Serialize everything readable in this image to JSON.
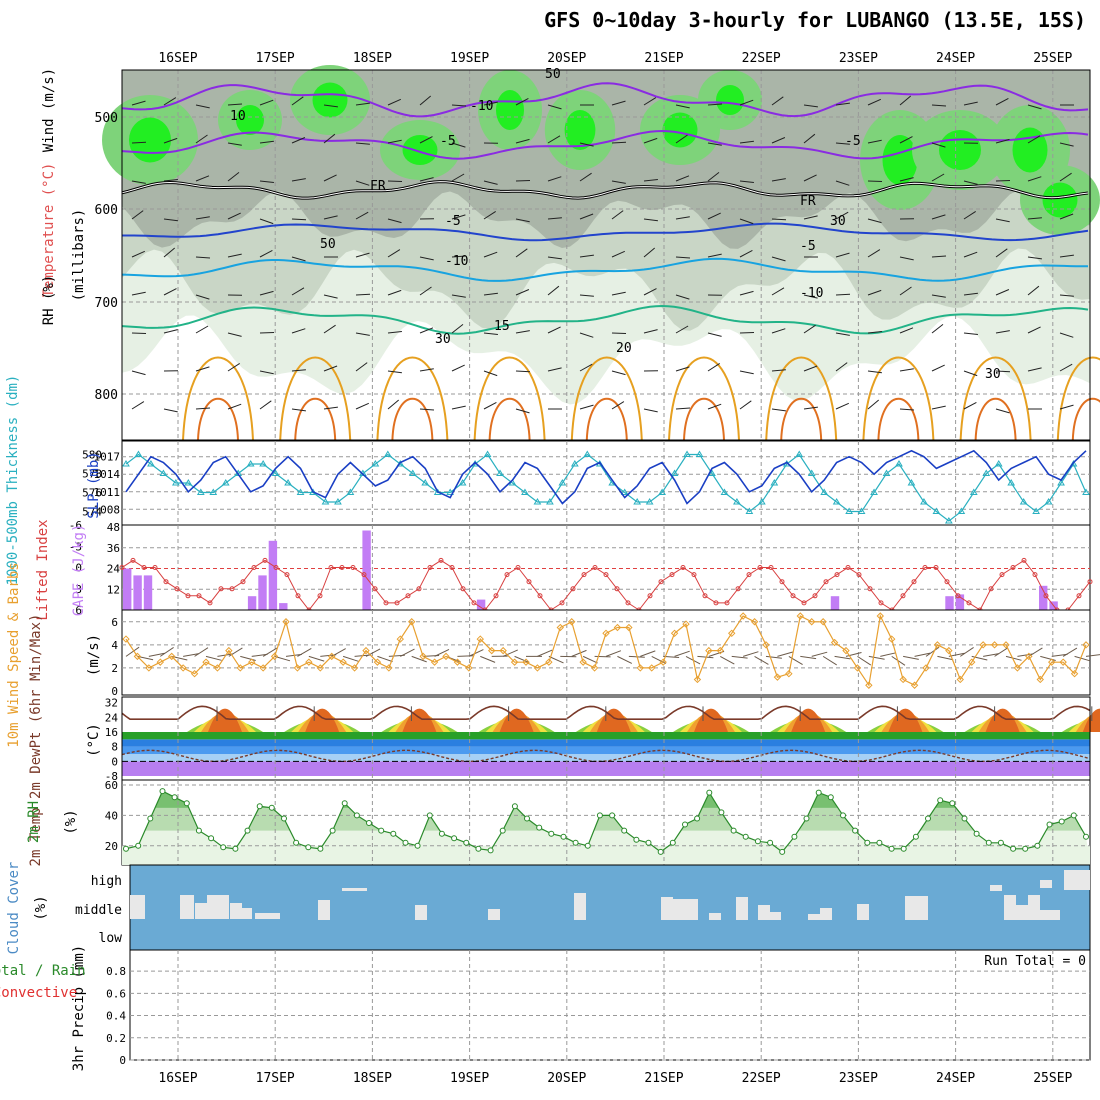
{
  "title": "GFS 0~10day 3-hourly for LUBANGO (13.5E, 15S)",
  "date_labels": [
    "16SEP",
    "17SEP",
    "18SEP",
    "19SEP",
    "20SEP",
    "21SEP",
    "22SEP",
    "23SEP",
    "24SEP",
    "25SEP"
  ],
  "run_total_label": "Run Total = 0",
  "colors": {
    "rh_light": "#e6f0e4",
    "rh_mid": "#c9d6c6",
    "rh_dark": "#aab5a8",
    "rh_green": "#7ed37a",
    "rh_bright": "#22ee22",
    "purple": "#8a2be2",
    "blue": "#2244cc",
    "cyan": "#18a3e0",
    "teal": "#22b388",
    "orange": "#e6a020",
    "dark_orange": "#e07020",
    "cloud_bg": "#6aaad4",
    "precip_axis": "#000"
  },
  "panels": {
    "upper": {
      "y_label_wind": "Wind (m/s)",
      "y_label_temp": "Temperature (°C)",
      "y_label_rh": "RH (%)",
      "y_label_units": "(millibars)",
      "y_ticks": [
        "500",
        "600",
        "700",
        "800"
      ],
      "contour_labels": [
        "-10",
        "-5",
        "-5",
        "FR",
        "FR",
        "-5",
        "-5",
        "-10",
        "-10",
        "10",
        "15",
        "20",
        "50",
        "50",
        "30",
        "30",
        "30"
      ]
    },
    "slp": {
      "y_label_left": "1000-500mb Thickness (dm)",
      "y_label_right": "SLP (mb)",
      "left_ticks": [
        "580",
        "578",
        "576",
        "574"
      ],
      "right_ticks": [
        "1017",
        "1014",
        "1011",
        "1008"
      ]
    },
    "cape": {
      "y_label_left": "Lifted Index",
      "y_label_right": "CAPE (J/kg)",
      "left_ticks": [
        "-6",
        "-3",
        "0",
        "3",
        "6"
      ],
      "right_ticks": [
        "48",
        "36",
        "24",
        "12"
      ]
    },
    "wind": {
      "y_label": "10m Wind Speed & Barbs",
      "y_units": "(m/s)",
      "ticks": [
        "6",
        "4",
        "2",
        "0"
      ]
    },
    "temp": {
      "y_label": "2m Temp 2m DewPt (6hr Min/Max)",
      "y_units": "(°C)",
      "ticks": [
        "32",
        "24",
        "16",
        "8",
        "0",
        "-8"
      ]
    },
    "rh": {
      "y_label": "2m RH",
      "y_units": "(%)",
      "ticks": [
        "60",
        "40",
        "20"
      ]
    },
    "cloud": {
      "y_label": "Cloud Cover",
      "y_units": "(%)",
      "ticks": [
        "high",
        "middle",
        "low"
      ]
    },
    "precip": {
      "y_label": "3hr Precip (mm)",
      "y_label2": "Total / Rain",
      "y_label3": "Convective",
      "ticks": [
        "0.8",
        "0.6",
        "0.4",
        "0.2",
        "0"
      ]
    }
  },
  "chart_data": [
    {
      "type": "line",
      "title": "1000-500mb Thickness (dm) / SLP (mb)",
      "series": [
        {
          "name": "SLP (mb)",
          "values": [
            1011,
            1014,
            1017,
            1016,
            1014,
            1011,
            1013,
            1016,
            1017,
            1014,
            1011,
            1012,
            1015,
            1017,
            1015,
            1011,
            1010,
            1014,
            1016,
            1014,
            1012,
            1013,
            1016,
            1017,
            1015,
            1011,
            1010,
            1014,
            1016,
            1014,
            1011,
            1013,
            1016,
            1015,
            1012,
            1009,
            1011,
            1015,
            1016,
            1013,
            1010,
            1012,
            1015,
            1016,
            1013,
            1009,
            1011,
            1015,
            1016,
            1014,
            1011,
            1012,
            1015,
            1016,
            1014,
            1011,
            1013,
            1016,
            1017,
            1016,
            1014,
            1016,
            1017,
            1018,
            1017,
            1015,
            1016,
            1017,
            1018,
            1016,
            1013,
            1015,
            1016,
            1017,
            1014,
            1013,
            1016,
            1018
          ]
        },
        {
          "name": "1000-500mb Thickness (dm)",
          "values": [
            579,
            580,
            579,
            578,
            577,
            577,
            576,
            576,
            577,
            578,
            579,
            579,
            578,
            577,
            576,
            576,
            575,
            575,
            576,
            578,
            579,
            580,
            579,
            578,
            577,
            576,
            576,
            577,
            579,
            580,
            578,
            577,
            576,
            575,
            575,
            577,
            579,
            580,
            579,
            577,
            576,
            575,
            575,
            576,
            578,
            580,
            580,
            578,
            576,
            575,
            574,
            575,
            577,
            579,
            580,
            578,
            576,
            575,
            574,
            574,
            576,
            578,
            579,
            577,
            575,
            574,
            573,
            574,
            576,
            578,
            579,
            577,
            575,
            574,
            575,
            577,
            579,
            576
          ]
        }
      ],
      "ylim_left": [
        573,
        581
      ],
      "ylim_right": [
        1006,
        1019
      ]
    },
    {
      "type": "bar",
      "title": "Lifted Index / CAPE (J/kg)",
      "cape_bars": [
        24,
        20,
        20,
        0,
        0,
        0,
        0,
        0,
        0,
        0,
        0,
        0,
        8,
        20,
        40,
        4,
        0,
        0,
        0,
        0,
        0,
        0,
        0,
        46,
        0,
        0,
        0,
        0,
        0,
        0,
        0,
        0,
        0,
        0,
        6,
        0,
        0,
        0,
        0,
        0,
        0,
        0,
        0,
        0,
        0,
        0,
        0,
        0,
        0,
        0,
        0,
        0,
        0,
        0,
        0,
        0,
        0,
        0,
        0,
        0,
        0,
        0,
        0,
        0,
        0,
        0,
        0,
        0,
        8,
        0,
        0,
        0,
        0,
        0,
        0,
        0,
        0,
        0,
        0,
        8,
        9,
        0,
        0,
        0,
        0,
        0,
        0,
        0,
        14,
        5,
        0,
        0,
        0
      ],
      "lifted_index": [
        0,
        -1,
        0,
        0,
        2,
        3,
        4,
        4,
        5,
        3,
        3,
        2,
        0,
        -1,
        0,
        1,
        4,
        6,
        4,
        0,
        0,
        0,
        1,
        3,
        5,
        5,
        4,
        3,
        0,
        -1,
        0,
        3,
        5,
        6,
        4,
        1,
        0,
        2,
        4,
        6,
        5,
        3,
        1,
        0,
        1,
        3,
        5,
        6,
        4,
        2,
        1,
        0,
        1,
        4,
        5,
        5,
        3,
        1,
        0,
        0,
        2,
        4,
        5,
        4,
        2,
        1,
        0,
        1,
        3,
        5,
        6,
        4,
        2,
        0,
        0,
        2,
        4,
        5,
        6,
        3,
        1,
        0,
        -1,
        1,
        4,
        6,
        6,
        4,
        2
      ]
    },
    {
      "type": "line",
      "title": "10m Wind Speed & Barbs",
      "ylabel": "(m/s)",
      "values": [
        4.5,
        3,
        2,
        2.5,
        3,
        2,
        1.5,
        2.5,
        2,
        3.5,
        2,
        2.5,
        2,
        3,
        6,
        2,
        2.5,
        2,
        3,
        2.5,
        2,
        3.5,
        2.5,
        2,
        4.5,
        6,
        3,
        2.5,
        3,
        2.5,
        2,
        4.5,
        3.5,
        3.5,
        2.5,
        2.5,
        2,
        2.5,
        5.5,
        6,
        2.5,
        2,
        5,
        5.5,
        5.5,
        2,
        2,
        2.5,
        5,
        5.8,
        1,
        3.5,
        3.5,
        5,
        6.5,
        6,
        4,
        1.2,
        1.5,
        6.5,
        6,
        6,
        4.2,
        3.5,
        2,
        0.5,
        6.5,
        4.5,
        1,
        0.5,
        2,
        4,
        3.5,
        1,
        2.5,
        4,
        4,
        4,
        2,
        3,
        1,
        2.5,
        2.5,
        1.5,
        4
      ]
    },
    {
      "type": "area",
      "title": "2m RH",
      "ylabel": "(%)",
      "values": [
        18,
        20,
        38,
        56,
        52,
        48,
        30,
        25,
        19,
        18,
        30,
        46,
        45,
        38,
        22,
        19,
        18,
        30,
        48,
        40,
        35,
        30,
        28,
        22,
        20,
        40,
        28,
        25,
        22,
        18,
        17,
        30,
        46,
        38,
        32,
        28,
        26,
        22,
        20,
        40,
        40,
        30,
        24,
        22,
        16,
        22,
        34,
        38,
        55,
        42,
        30,
        26,
        23,
        22,
        16,
        26,
        38,
        55,
        52,
        40,
        30,
        22,
        22,
        18,
        18,
        26,
        38,
        50,
        48,
        38,
        28,
        22,
        22,
        18,
        18,
        20,
        34,
        36,
        40,
        26
      ]
    }
  ]
}
